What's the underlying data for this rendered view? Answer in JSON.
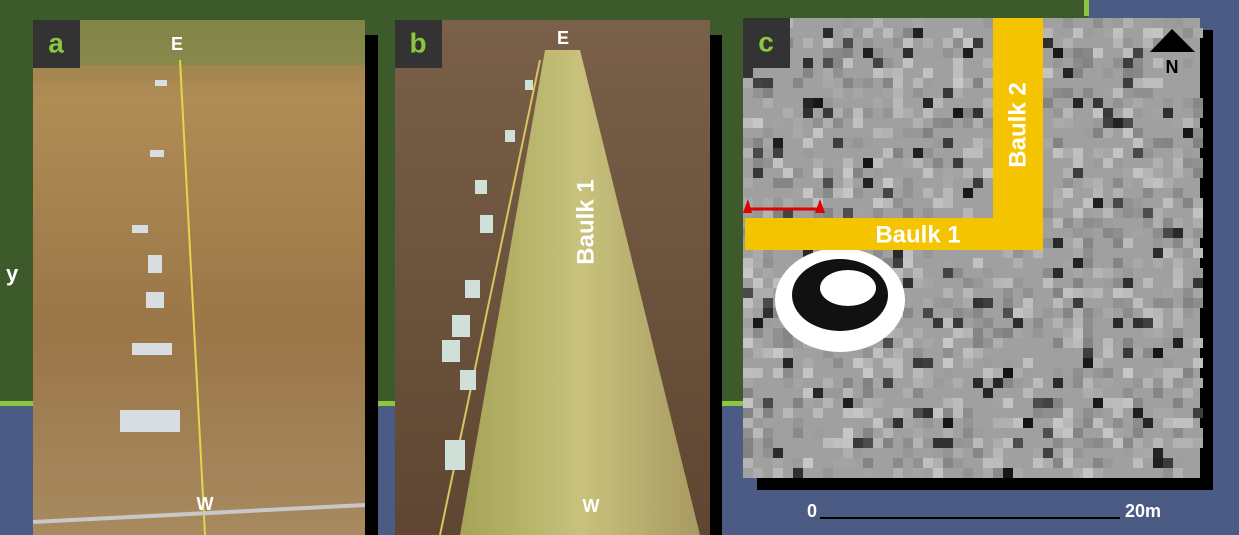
{
  "left_fragment": "y",
  "panels": [
    {
      "label": "a",
      "top_marker": "E",
      "bottom_marker": "W"
    },
    {
      "label": "b",
      "top_marker": "E",
      "bottom_marker": "W",
      "annotation": "Baulk 1"
    },
    {
      "label": "c",
      "annotations": [
        "Baulk 1",
        "Baulk 2"
      ],
      "north": "N",
      "scale": {
        "start": "0",
        "end": "20m"
      }
    }
  ]
}
